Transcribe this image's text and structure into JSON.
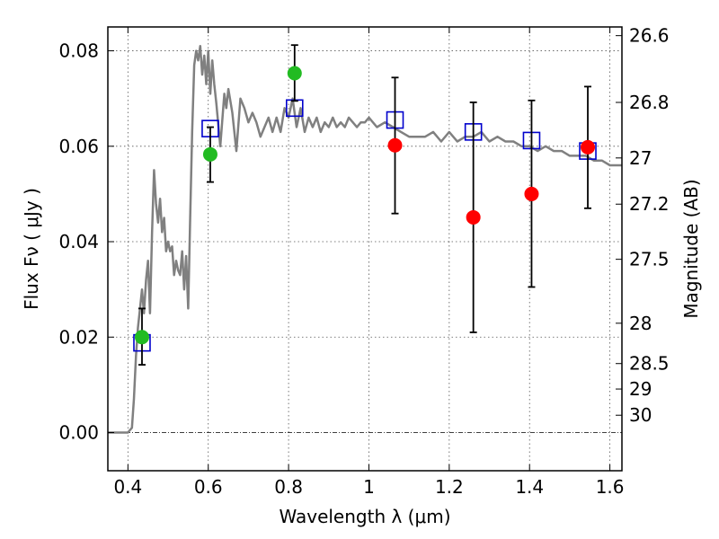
{
  "chart_data": {
    "type": "scatter",
    "xlabel": "Wavelength  λ (μm)",
    "ylabel": "Flux  Fν  ( μJy )",
    "ylabel_right": "Magnitude (AB)",
    "xlim": [
      0.35,
      1.63
    ],
    "ylim": [
      -0.008,
      0.085
    ],
    "grid": true,
    "x_ticks": [
      0.4,
      0.6,
      0.8,
      1.0,
      1.2,
      1.4,
      1.6
    ],
    "x_tick_labels": [
      "0.4",
      "0.6",
      "0.8",
      "1",
      "1.2",
      "1.4",
      "1.6"
    ],
    "y_ticks": [
      0.0,
      0.02,
      0.04,
      0.06,
      0.08
    ],
    "y_tick_labels": [
      "0.00",
      "0.02",
      "0.04",
      "0.06",
      "0.08"
    ],
    "mag_ticks": [
      26.6,
      26.8,
      27,
      27.2,
      27.5,
      28,
      28.5,
      29,
      30
    ],
    "mag_tick_labels": [
      "26.6",
      "26.8",
      "27",
      "27.2",
      "27.5",
      "28",
      "28.5",
      "29",
      "30"
    ],
    "zero_line": 0.0,
    "colors": {
      "model": "#808080",
      "model_photometry": "#0000cc",
      "detected": "#22bb22",
      "upper": "#ff0000",
      "errorbar": "#000000",
      "grid": "#555555"
    },
    "series": [
      {
        "kind": "model_spectrum",
        "x": [
          0.35,
          0.4,
          0.41,
          0.415,
          0.42,
          0.425,
          0.43,
          0.435,
          0.44,
          0.445,
          0.45,
          0.455,
          0.46,
          0.465,
          0.47,
          0.475,
          0.48,
          0.485,
          0.49,
          0.495,
          0.5,
          0.505,
          0.51,
          0.515,
          0.52,
          0.525,
          0.53,
          0.535,
          0.54,
          0.545,
          0.55,
          0.555,
          0.56,
          0.565,
          0.57,
          0.575,
          0.58,
          0.585,
          0.59,
          0.595,
          0.6,
          0.605,
          0.61,
          0.615,
          0.62,
          0.63,
          0.64,
          0.645,
          0.65,
          0.66,
          0.67,
          0.68,
          0.69,
          0.7,
          0.71,
          0.72,
          0.73,
          0.74,
          0.75,
          0.76,
          0.77,
          0.78,
          0.79,
          0.8,
          0.81,
          0.82,
          0.83,
          0.84,
          0.85,
          0.86,
          0.87,
          0.88,
          0.89,
          0.9,
          0.91,
          0.92,
          0.93,
          0.94,
          0.95,
          0.96,
          0.97,
          0.98,
          0.99,
          1.0,
          1.02,
          1.04,
          1.06,
          1.08,
          1.1,
          1.12,
          1.14,
          1.16,
          1.18,
          1.2,
          1.22,
          1.24,
          1.26,
          1.28,
          1.3,
          1.32,
          1.34,
          1.36,
          1.38,
          1.4,
          1.42,
          1.44,
          1.46,
          1.48,
          1.5,
          1.52,
          1.54,
          1.56,
          1.58,
          1.6,
          1.63
        ],
        "y": [
          0.0,
          0.0,
          0.001,
          0.007,
          0.016,
          0.022,
          0.026,
          0.03,
          0.025,
          0.032,
          0.036,
          0.025,
          0.042,
          0.055,
          0.048,
          0.044,
          0.049,
          0.042,
          0.045,
          0.038,
          0.04,
          0.038,
          0.039,
          0.033,
          0.036,
          0.034,
          0.033,
          0.038,
          0.03,
          0.037,
          0.026,
          0.045,
          0.063,
          0.077,
          0.08,
          0.078,
          0.081,
          0.075,
          0.079,
          0.073,
          0.08,
          0.071,
          0.078,
          0.073,
          0.069,
          0.06,
          0.071,
          0.068,
          0.072,
          0.067,
          0.059,
          0.07,
          0.068,
          0.065,
          0.067,
          0.065,
          0.062,
          0.064,
          0.066,
          0.063,
          0.066,
          0.063,
          0.068,
          0.066,
          0.07,
          0.064,
          0.068,
          0.063,
          0.066,
          0.064,
          0.066,
          0.063,
          0.065,
          0.064,
          0.066,
          0.064,
          0.065,
          0.064,
          0.066,
          0.065,
          0.064,
          0.065,
          0.065,
          0.066,
          0.064,
          0.065,
          0.064,
          0.063,
          0.062,
          0.062,
          0.062,
          0.063,
          0.061,
          0.063,
          0.061,
          0.062,
          0.062,
          0.063,
          0.061,
          0.062,
          0.061,
          0.061,
          0.06,
          0.06,
          0.059,
          0.06,
          0.059,
          0.059,
          0.058,
          0.058,
          0.058,
          0.057,
          0.057,
          0.056,
          0.056
        ]
      },
      {
        "kind": "model_photometry",
        "points": [
          {
            "x": 0.435,
            "y": 0.0188
          },
          {
            "x": 0.605,
            "y": 0.0637
          },
          {
            "x": 0.815,
            "y": 0.068
          },
          {
            "x": 1.065,
            "y": 0.0655
          },
          {
            "x": 1.26,
            "y": 0.063
          },
          {
            "x": 1.405,
            "y": 0.0612
          },
          {
            "x": 1.545,
            "y": 0.059
          }
        ]
      },
      {
        "kind": "observed_detected",
        "points": [
          {
            "x": 0.435,
            "y": 0.02,
            "err_lo": 0.0142,
            "err_hi": 0.026
          },
          {
            "x": 0.605,
            "y": 0.0583,
            "err_lo": 0.0525,
            "err_hi": 0.064
          },
          {
            "x": 0.815,
            "y": 0.0753,
            "err_lo": 0.0695,
            "err_hi": 0.0812
          }
        ]
      },
      {
        "kind": "observed_weak",
        "points": [
          {
            "x": 1.065,
            "y": 0.0602,
            "err_lo": 0.0459,
            "err_hi": 0.0744
          },
          {
            "x": 1.26,
            "y": 0.0451,
            "err_lo": 0.021,
            "err_hi": 0.0692
          },
          {
            "x": 1.405,
            "y": 0.05,
            "err_lo": 0.0305,
            "err_hi": 0.0696
          },
          {
            "x": 1.545,
            "y": 0.0598,
            "err_lo": 0.047,
            "err_hi": 0.0725
          }
        ]
      }
    ]
  }
}
